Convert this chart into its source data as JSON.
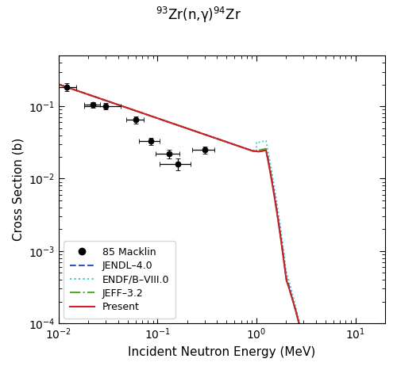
{
  "title": "$^{93}$Zr(n,γ)$^{94}$Zr",
  "xlabel": "Incident Neutron Energy (MeV)",
  "ylabel": "Cross Section (b)",
  "xlim": [
    0.01,
    20
  ],
  "ylim": [
    0.0001,
    0.5
  ],
  "macklin_x": [
    0.012,
    0.022,
    0.03,
    0.06,
    0.085,
    0.13,
    0.16,
    0.3
  ],
  "macklin_y": [
    0.185,
    0.105,
    0.1,
    0.065,
    0.033,
    0.022,
    0.016,
    0.025
  ],
  "macklin_xerr": [
    0.003,
    0.004,
    0.012,
    0.012,
    0.02,
    0.035,
    0.055,
    0.075
  ],
  "macklin_yerr": [
    0.022,
    0.01,
    0.01,
    0.007,
    0.004,
    0.003,
    0.003,
    0.003
  ],
  "jendl_color": "#3355bb",
  "endfb_color": "#33cccc",
  "jeff_color": "#55aa33",
  "present_color": "#cc2222",
  "legend_labels": [
    "85 Macklin",
    "JENDL–4.0",
    "ENDF/B–VIII.0",
    "JEFF–3.2",
    "Present"
  ]
}
